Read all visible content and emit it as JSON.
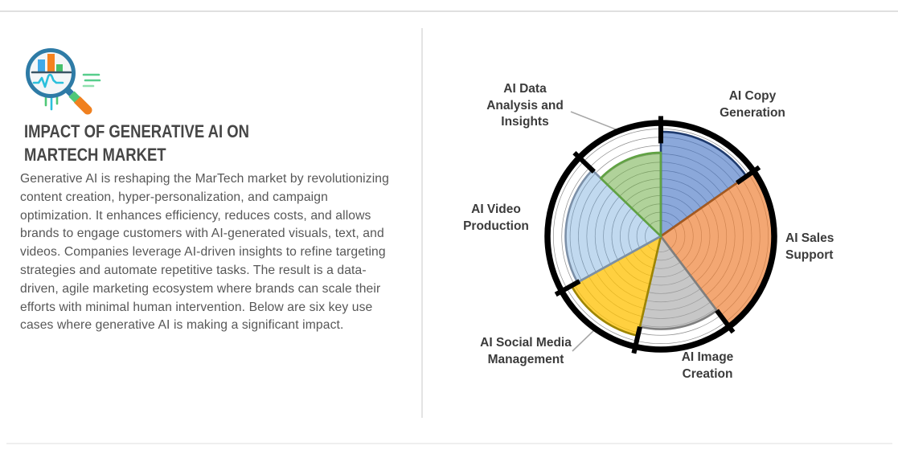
{
  "left_panel": {
    "icon": "magnifier-bar-chart-icon",
    "title_display": "IMPACT OF GENERATIVE AI ON\nMARTECH MARKET",
    "title": "IMPACT OF GENERATIVE AI ON MARTECH MARKET",
    "description": "Generative AI is reshaping the MarTech market by revolutionizing content creation, hyper-personalization, and campaign optimization. It enhances efficiency, reduces costs, and allows brands to engage customers with AI-generated visuals, text, and videos. Companies leverage AI-driven insights to refine targeting strategies and automate repetitive tasks. The result is a data-driven, agile marketing ecosystem where brands can scale their efforts with minimal human intervention. Below are six key use cases where generative AI is making a significant impact."
  },
  "chart_data": {
    "type": "rose",
    "title": "",
    "legend_position": "none",
    "grid": "concentric-rings",
    "grid_ring_count": 12,
    "outer_ring_color": "#000000",
    "grid_ring_color": "#8f8f8f",
    "leader_line_color": "#a8a8a8",
    "label_color": "#3b3b3b",
    "segments": [
      {
        "label": "AI Copy Generation",
        "label_display": "AI Copy\nGeneration",
        "angle_start_deg": 0,
        "angle_end_deg": 55,
        "radius_pct": 90,
        "fill": "#4472C4",
        "fill_opacity": 0.62,
        "stroke": "#1F3B6E"
      },
      {
        "label": "AI Sales Support",
        "label_display": "AI Sales\nSupport",
        "angle_start_deg": 55,
        "angle_end_deg": 143,
        "radius_pct": 99,
        "fill": "#ED7D31",
        "fill_opacity": 0.68,
        "stroke": "#A55A20"
      },
      {
        "label": "AI Image Creation",
        "label_display": "AI Image\nCreation",
        "angle_start_deg": 143,
        "angle_end_deg": 193,
        "radius_pct": 80,
        "fill": "#A5A5A5",
        "fill_opacity": 0.62,
        "stroke": "#7F7F7F"
      },
      {
        "label": "AI Social Media Management",
        "label_display": "AI Social Media\nManagement",
        "angle_start_deg": 193,
        "angle_end_deg": 241,
        "radius_pct": 88,
        "fill": "#FFC000",
        "fill_opacity": 0.75,
        "stroke": "#9E8500"
      },
      {
        "label": "AI Video Production",
        "label_display": "AI Video\nProduction",
        "angle_start_deg": 241,
        "angle_end_deg": 314,
        "radius_pct": 82,
        "fill": "#5B9BD5",
        "fill_opacity": 0.38,
        "stroke": "#7C90A8"
      },
      {
        "label": "AI Data Analysis and Insights",
        "label_display": "AI Data\nAnalysis and\nInsights",
        "angle_start_deg": 314,
        "angle_end_deg": 360,
        "radius_pct": 72,
        "fill": "#70AD47",
        "fill_opacity": 0.55,
        "stroke": "#60A243"
      }
    ]
  }
}
